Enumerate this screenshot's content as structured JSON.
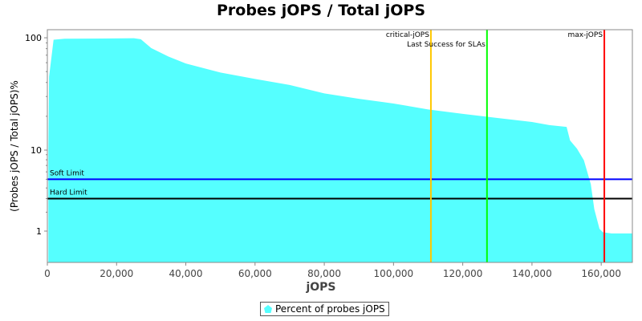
{
  "chart_data": {
    "type": "area",
    "title": "Probes jOPS / Total jOPS",
    "xlabel": "jOPS",
    "ylabel": "(Probes jOPS / Total jOPS)%",
    "yscale": "log",
    "xlim": [
      0,
      169000
    ],
    "ylim": [
      0,
      118
    ],
    "x_ticks": [
      0,
      20000,
      40000,
      60000,
      80000,
      100000,
      120000,
      140000,
      160000
    ],
    "x_tick_labels": [
      "0",
      "20,000",
      "40,000",
      "60,000",
      "80,000",
      "100,000",
      "120,000",
      "140,000",
      "160,000"
    ],
    "y_ticks": [
      1,
      10,
      100
    ],
    "y_tick_labels": [
      "1",
      "10",
      "100"
    ],
    "grid": false,
    "legend_placement": "bottom",
    "series": [
      {
        "name": "Percent of probes jOPS",
        "color": "#55ffff",
        "x": [
          300,
          500,
          1800,
          5000,
          25000,
          27000,
          30000,
          35000,
          40000,
          50000,
          60000,
          70000,
          80000,
          90000,
          100000,
          110000,
          120000,
          130000,
          140000,
          145000,
          150000,
          151000,
          153000,
          155000,
          157000,
          158000,
          159500,
          160500,
          163000,
          168000
        ],
        "y": [
          10,
          45,
          96,
          98,
          99,
          97,
          81,
          68,
          59,
          49,
          43,
          38,
          32,
          28.6,
          26,
          23,
          21,
          19.3,
          17.8,
          16.7,
          16.1,
          12.2,
          10.3,
          7.9,
          4.4,
          2.2,
          1.1,
          0.95,
          0.9,
          0.9
        ]
      }
    ],
    "horizontal_lines": [
      {
        "label": "Soft Limit",
        "value": 5,
        "color": "#0000ff"
      },
      {
        "label": "Hard Limit",
        "value": 3,
        "color": "#000000"
      }
    ],
    "vertical_lines": [
      {
        "label": "critical-jOPS",
        "value": 110800,
        "color": "#ffc800"
      },
      {
        "label": "Last Success for SLAs",
        "value": 127000,
        "color": "#00ff00"
      },
      {
        "label": "max-jOPS",
        "value": 160900,
        "color": "#ff0000"
      }
    ]
  }
}
